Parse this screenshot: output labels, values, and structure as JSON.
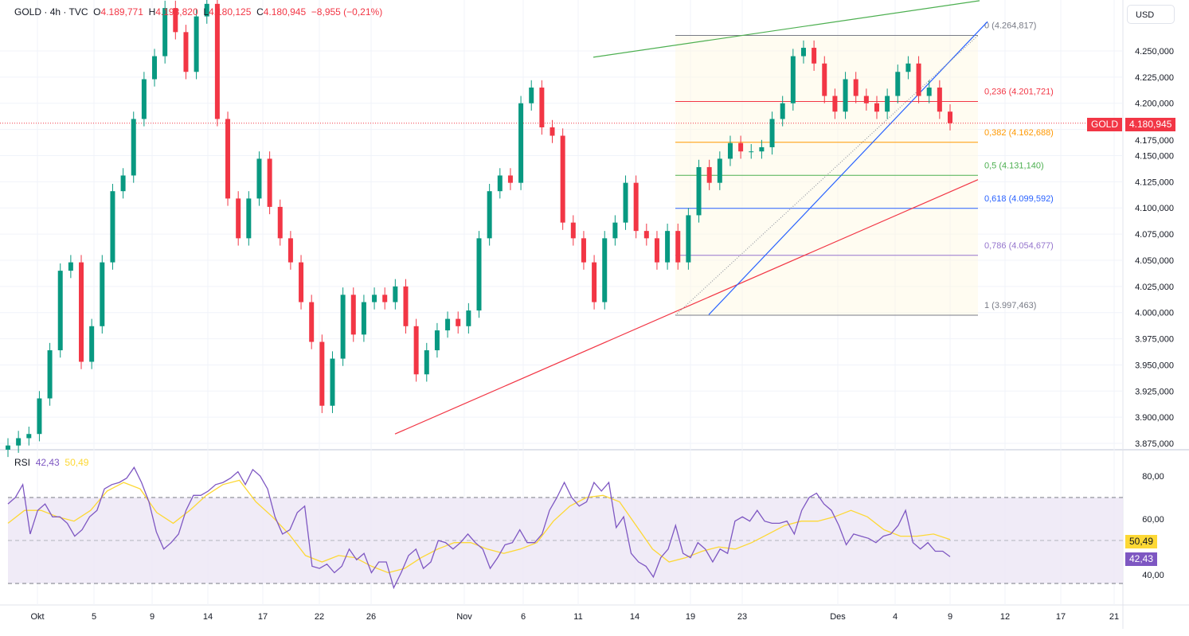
{
  "header": {
    "symbol": "GOLD",
    "interval": "4h",
    "source": "TVC",
    "o_label": "O",
    "o": "4.189,771",
    "h_label": "H",
    "h": "4.198,820",
    "l_label": "L",
    "l": "4.180,125",
    "c_label": "C",
    "c": "4.180,945",
    "change": "−8,955 (−0,21%)"
  },
  "currency_button": "USD",
  "last_price_tag": {
    "symbol": "GOLD",
    "price": "4.180,945",
    "color": "#f23645"
  },
  "rsi_legend": {
    "name": "RSI",
    "rsi": "42,43",
    "ma": "50,49",
    "rsi_color": "#7e57c2",
    "ma_color": "#fdd835"
  },
  "colors": {
    "up": "#089981",
    "down": "#f23645",
    "grid": "#f0f3fa",
    "rsi_band": "#ede7f6"
  },
  "chart_data": [
    {
      "type": "candlestick",
      "title": "GOLD · 4h · TVC",
      "closes": [
        3873,
        3880,
        3884,
        3918,
        3964,
        4040,
        4048,
        3953,
        3987,
        4048,
        4116,
        4131,
        4185,
        4223,
        4245,
        4291,
        4268,
        4230,
        4283,
        4295,
        4185,
        4109,
        4071,
        4109,
        4147,
        4101,
        4071,
        4048,
        4010,
        3972,
        3911,
        3956,
        4017,
        3979,
        4010,
        4017,
        4010,
        4025,
        3987,
        3941,
        3964,
        3983,
        3994,
        3987,
        4002,
        4071,
        4116,
        4131,
        4124,
        4200,
        4215,
        4177,
        4169,
        4086,
        4071,
        4048,
        4010,
        4071,
        4086,
        4124,
        4078,
        4071,
        4048,
        4078,
        4048,
        4093,
        4139,
        4124,
        4147,
        4162,
        4154,
        4154,
        4158,
        4185,
        4200,
        4245,
        4253,
        4238,
        4207,
        4192,
        4223,
        4207,
        4200,
        4192,
        4207,
        4230,
        4238,
        4207,
        4215,
        4192,
        4181
      ],
      "y_ticks": [
        "4.250,000",
        "4.225,000",
        "4.200,000",
        "4.175,000",
        "4.150,000",
        "4.125,000",
        "4.100,000",
        "4.075,000",
        "4.050,000",
        "4.025,000",
        "4.000,000",
        "3.975,000",
        "3.950,000",
        "3.925,000",
        "3.900,000",
        "3.875,000"
      ],
      "y_tick_values": [
        4250,
        4225,
        4200,
        4175,
        4150,
        4125,
        4100,
        4075,
        4050,
        4025,
        4000,
        3975,
        3950,
        3925,
        3900,
        3875
      ],
      "x_ticks": [
        "Okt",
        "5",
        "9",
        "14",
        "17",
        "22",
        "26",
        "Nov",
        "6",
        "11",
        "14",
        "19",
        "23",
        "Des",
        "4",
        "9",
        "12",
        "17",
        "21"
      ],
      "last_price": 4180.945,
      "fibonacci": [
        {
          "level": "0",
          "price": 4264.817,
          "label": "0 (4.264,817)",
          "color": "#787b86"
        },
        {
          "level": "0.236",
          "price": 4201.721,
          "label": "0,236 (4.201,721)",
          "color": "#f23645"
        },
        {
          "level": "0.382",
          "price": 4162.688,
          "label": "0,382 (4.162,688)",
          "color": "#ff9800"
        },
        {
          "level": "0.5",
          "price": 4131.14,
          "label": "0,5 (4.131,140)",
          "color": "#4caf50"
        },
        {
          "level": "0.618",
          "price": 4099.592,
          "label": "0,618 (4.099,592)",
          "color": "#2962ff"
        },
        {
          "level": "0.786",
          "price": 4054.677,
          "label": "0,786 (4.054,677)",
          "color": "#9575cd"
        },
        {
          "level": "1",
          "price": 3997.463,
          "label": "1 (3.997,463)",
          "color": "#787b86"
        }
      ],
      "trendlines": [
        {
          "color": "#f23645",
          "prices": [
            3884,
            4127
          ]
        },
        {
          "color": "#4caf50",
          "prices": [
            4244,
            4298
          ]
        },
        {
          "color": "#2962ff",
          "prices": [
            3998,
            4278
          ]
        },
        {
          "color": "#9598a1",
          "style": "dotted",
          "prices": [
            3997.463,
            4264.817
          ]
        }
      ]
    },
    {
      "type": "line",
      "title": "RSI",
      "ylim": [
        20,
        90
      ],
      "y_ticks": [
        "80,00",
        "60,00",
        "40,00"
      ],
      "y_tick_values": [
        80,
        60,
        40
      ],
      "bands": [
        70,
        50,
        30
      ],
      "series": [
        {
          "name": "RSI",
          "color": "#7e57c2",
          "values": [
            67,
            70,
            76,
            53,
            64,
            67,
            61,
            61,
            58,
            52,
            55,
            61,
            64,
            74,
            76,
            77,
            79,
            84,
            77,
            68,
            54,
            46,
            49,
            53,
            64,
            71,
            71,
            73,
            76,
            77,
            79,
            82,
            76,
            83,
            80,
            74,
            61,
            53,
            55,
            63,
            66,
            38,
            37,
            39,
            35,
            38,
            46,
            41,
            44,
            35,
            40,
            40,
            28,
            35,
            43,
            46,
            37,
            40,
            50,
            49,
            46,
            49,
            53,
            49,
            46,
            37,
            42,
            48,
            49,
            55,
            49,
            49,
            53,
            64,
            70,
            77,
            70,
            66,
            68,
            77,
            73,
            77,
            56,
            61,
            44,
            40,
            38,
            33,
            42,
            46,
            57,
            44,
            42,
            49,
            46,
            40,
            46,
            44,
            59,
            61,
            59,
            64,
            59,
            58,
            58,
            59,
            53,
            64,
            70,
            72,
            67,
            64,
            57,
            48,
            53,
            52,
            51,
            49,
            52,
            53,
            57,
            64,
            49,
            46,
            49,
            45,
            45,
            42.43
          ]
        },
        {
          "name": "MA",
          "color": "#fdd835",
          "values": [
            58,
            64,
            64,
            61,
            59,
            64,
            73,
            77,
            74,
            63,
            58,
            64,
            71,
            76,
            78,
            68,
            61,
            53,
            43,
            40,
            43,
            42,
            38,
            35,
            37,
            42,
            46,
            49,
            49,
            46,
            44,
            46,
            49,
            59,
            66,
            70,
            71,
            68,
            57,
            46,
            40,
            42,
            45,
            47,
            46,
            49,
            53,
            57,
            59,
            59,
            61,
            64,
            61,
            55,
            52,
            52,
            53,
            50.49
          ]
        }
      ]
    }
  ]
}
